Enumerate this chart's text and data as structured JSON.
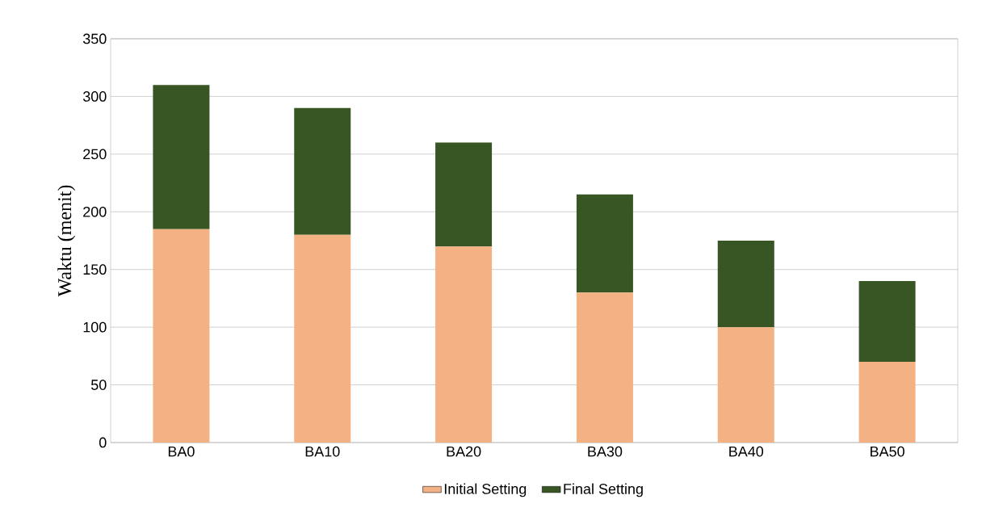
{
  "chart_data": {
    "type": "bar",
    "stacked": true,
    "ylabel": "Waktu (menit)",
    "categories": [
      "BA0",
      "BA10",
      "BA20",
      "BA30",
      "BA40",
      "BA50"
    ],
    "series": [
      {
        "name": "Initial Setting",
        "color": "#f4b183",
        "values": [
          185,
          180,
          170,
          130,
          100,
          70
        ]
      },
      {
        "name": "Final Setting",
        "color": "#375623",
        "values": [
          125,
          110,
          90,
          85,
          75,
          70
        ]
      }
    ],
    "ylim": [
      0,
      350
    ],
    "yticks": [
      0,
      50,
      100,
      150,
      200,
      250,
      300,
      350
    ],
    "grid": "y",
    "legend": "bottom"
  }
}
